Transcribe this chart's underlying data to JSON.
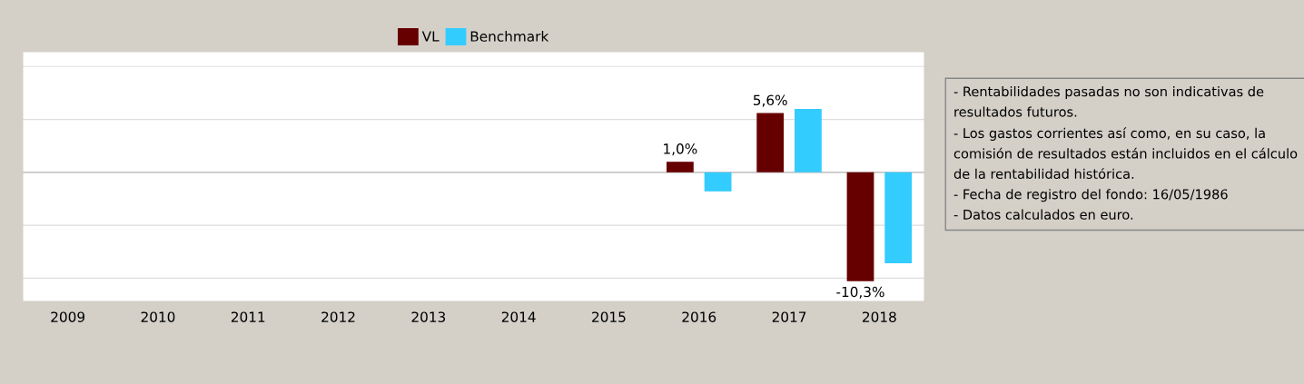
{
  "chart_data": {
    "type": "bar",
    "categories": [
      "2009",
      "2010",
      "2011",
      "2012",
      "2013",
      "2014",
      "2015",
      "2016",
      "2017",
      "2018"
    ],
    "series": [
      {
        "name": "VL",
        "color": "#660000",
        "values": [
          null,
          null,
          null,
          null,
          null,
          null,
          null,
          1.0,
          5.6,
          -10.3
        ],
        "value_labels": [
          null,
          null,
          null,
          null,
          null,
          null,
          null,
          "1,0%",
          "5,6%",
          "-10,3%"
        ]
      },
      {
        "name": "Benchmark",
        "color": "#33ccff",
        "values": [
          null,
          null,
          null,
          null,
          null,
          null,
          null,
          -1.8,
          6.0,
          -8.6
        ]
      }
    ],
    "ylim": [
      -12.2,
      11.4
    ],
    "yticks": [
      {
        "value": -10,
        "label": null
      },
      {
        "value": -5,
        "label": null
      },
      {
        "value": 0,
        "label": null
      },
      {
        "value": 5,
        "label": null
      },
      {
        "value": 10,
        "label": null
      }
    ],
    "grid": "y",
    "legend": "top",
    "annotations": [
      "- Rentabilidades pasadas no son indicativas de resultados futuros.\n- Los gastos corrientes así como, en su caso, la comisión de resultados están incluidos en el cálculo de la rentabilidad histórica.\n- Fecha de registro del fondo: 16/05/1986\n- Datos calculados en euro."
    ]
  }
}
